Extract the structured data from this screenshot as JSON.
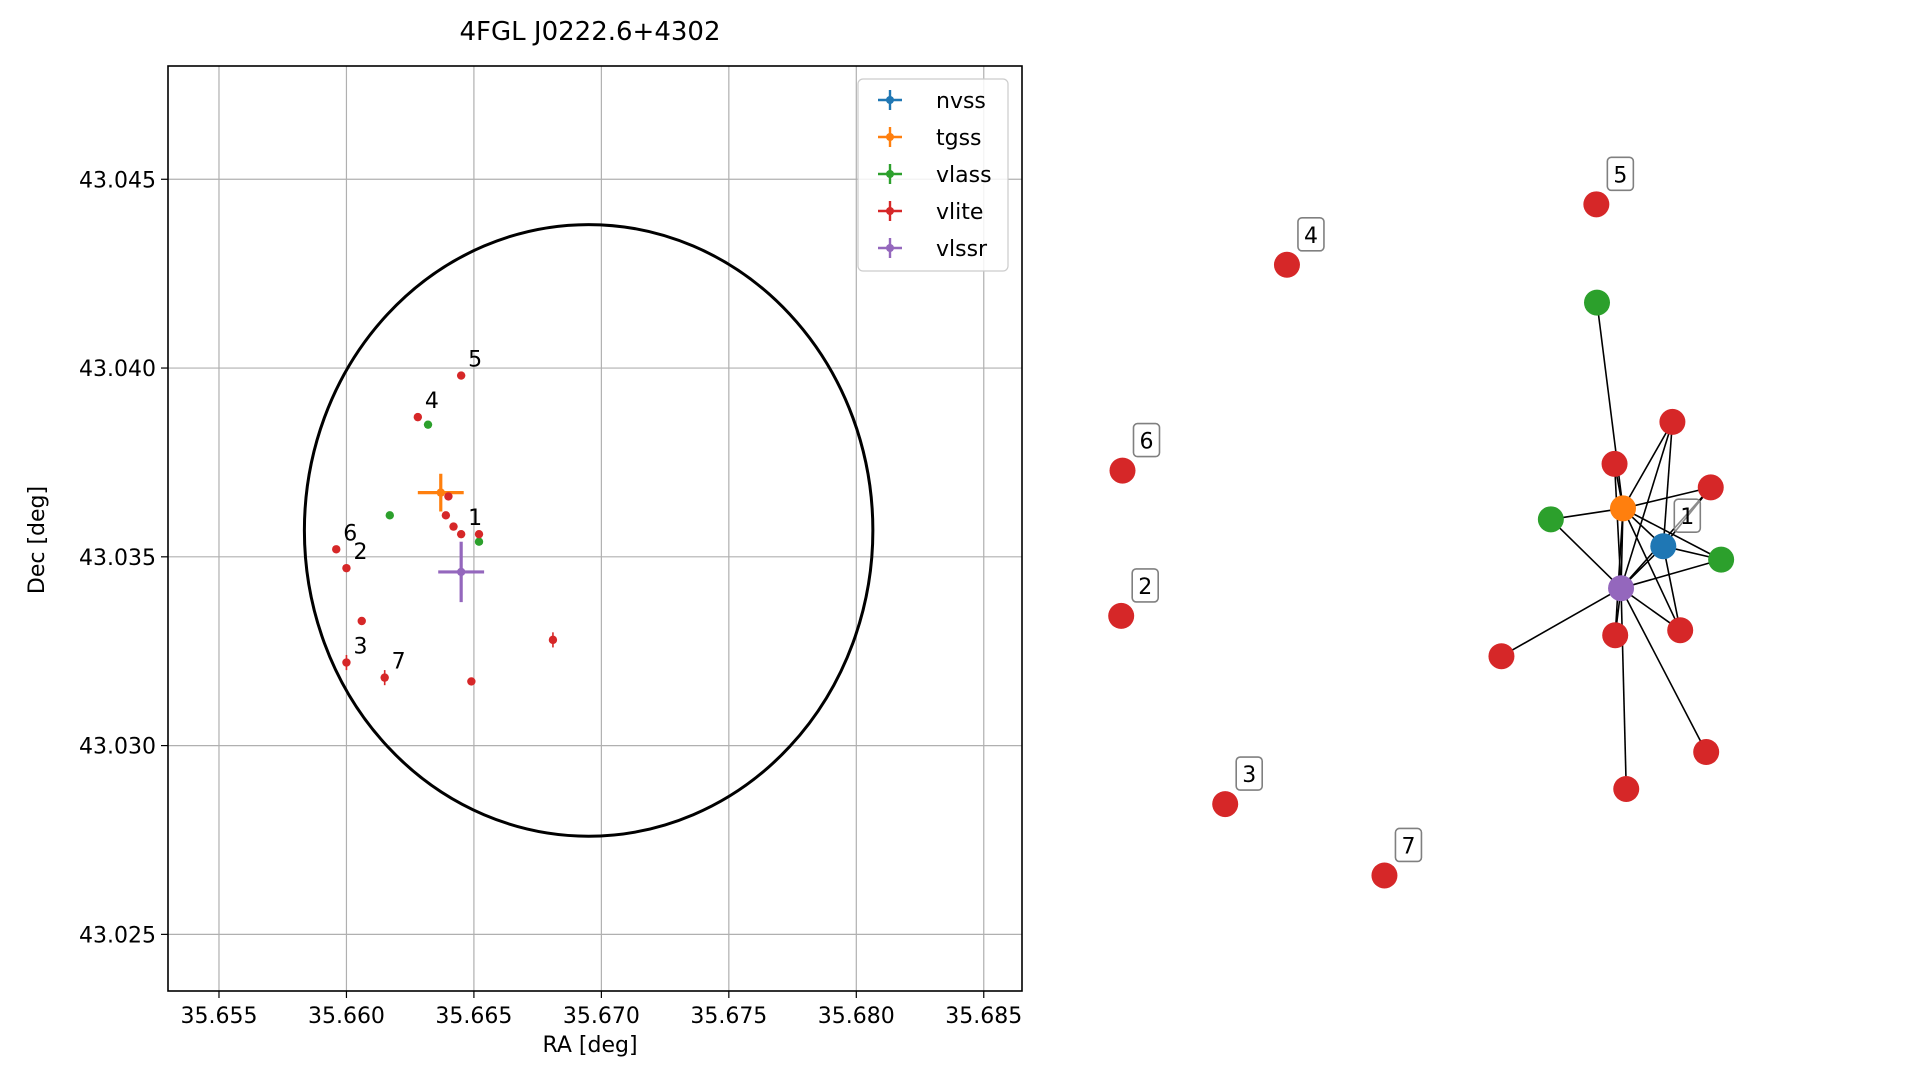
{
  "chart_data": [
    {
      "type": "scatter",
      "title": "4FGL J0222.6+4302",
      "xlabel": "RA [deg]",
      "ylabel": "Dec [deg]",
      "xlim": [
        35.653,
        35.6865
      ],
      "ylim": [
        43.0235,
        43.048
      ],
      "xticks": [
        35.655,
        35.66,
        35.665,
        35.67,
        35.675,
        35.68,
        35.685
      ],
      "xtick_labels": [
        "35.655",
        "35.660",
        "35.665",
        "35.670",
        "35.675",
        "35.680",
        "35.685"
      ],
      "yticks": [
        43.025,
        43.03,
        43.035,
        43.04,
        43.045
      ],
      "ytick_labels": [
        "43.025",
        "43.030",
        "43.035",
        "43.040",
        "43.045"
      ],
      "grid": true,
      "legend_position": "top-right",
      "ellipse": {
        "center_ra": 35.6695,
        "center_dec": 43.0357,
        "semi_ra": 0.01115,
        "semi_dec": 0.0081,
        "color": "#000000"
      },
      "series": [
        {
          "name": "nvss",
          "color": "#1f77b4",
          "points": []
        },
        {
          "name": "tgss",
          "color": "#ff7f0e",
          "points": [
            {
              "x": 35.6637,
              "y": 43.0367,
              "xerr": 0.0009,
              "yerr": 0.0005
            }
          ]
        },
        {
          "name": "vlass",
          "color": "#2ca02c",
          "points": [
            {
              "x": 35.6617,
              "y": 43.0361
            },
            {
              "x": 35.6632,
              "y": 43.0385
            },
            {
              "x": 35.6652,
              "y": 43.0354
            }
          ]
        },
        {
          "name": "vlite",
          "color": "#d62728",
          "points": [
            {
              "x": 35.6645,
              "y": 43.0356,
              "label": "1"
            },
            {
              "x": 35.66,
              "y": 43.0347,
              "label": "2"
            },
            {
              "x": 35.66,
              "y": 43.0322,
              "yerr": 0.0002,
              "label": "3"
            },
            {
              "x": 35.6628,
              "y": 43.0387,
              "label": "4"
            },
            {
              "x": 35.6645,
              "y": 43.0398,
              "label": "5"
            },
            {
              "x": 35.6596,
              "y": 43.0352,
              "label": "6"
            },
            {
              "x": 35.6615,
              "y": 43.0318,
              "yerr": 0.0002,
              "label": "7"
            },
            {
              "x": 35.664,
              "y": 43.0366
            },
            {
              "x": 35.6639,
              "y": 43.0361
            },
            {
              "x": 35.6642,
              "y": 43.0358
            },
            {
              "x": 35.6652,
              "y": 43.0356
            },
            {
              "x": 35.6606,
              "y": 43.0333
            },
            {
              "x": 35.6649,
              "y": 43.0317
            },
            {
              "x": 35.6681,
              "y": 43.0328,
              "yerr": 0.0002
            }
          ]
        },
        {
          "name": "vlssr",
          "color": "#9467bd",
          "points": [
            {
              "x": 35.6645,
              "y": 43.0346,
              "xerr": 0.0009,
              "yerr": 0.0008
            }
          ]
        }
      ]
    },
    {
      "type": "network",
      "title": "",
      "nodes": [
        {
          "id": "n1",
          "color": "#1f77b4",
          "x": 0.882,
          "y": 0.555,
          "label": "1"
        },
        {
          "id": "tgss",
          "color": "#ff7f0e",
          "x": 0.82,
          "y": 0.51
        },
        {
          "id": "vlssr",
          "color": "#9467bd",
          "x": 0.817,
          "y": 0.605
        },
        {
          "id": "g1",
          "color": "#2ca02c",
          "x": 0.78,
          "y": 0.265
        },
        {
          "id": "g2",
          "color": "#2ca02c",
          "x": 0.709,
          "y": 0.523
        },
        {
          "id": "g3",
          "color": "#2ca02c",
          "x": 0.971,
          "y": 0.571
        },
        {
          "id": "r1",
          "color": "#d62728",
          "x": 0.896,
          "y": 0.407
        },
        {
          "id": "r2",
          "color": "#d62728",
          "x": 0.807,
          "y": 0.457
        },
        {
          "id": "r3",
          "color": "#d62728",
          "x": 0.955,
          "y": 0.485
        },
        {
          "id": "r4",
          "color": "#d62728",
          "x": 0.633,
          "y": 0.686
        },
        {
          "id": "r5",
          "color": "#d62728",
          "x": 0.808,
          "y": 0.661
        },
        {
          "id": "r6",
          "color": "#d62728",
          "x": 0.908,
          "y": 0.655
        },
        {
          "id": "r7",
          "color": "#d62728",
          "x": 0.948,
          "y": 0.8
        },
        {
          "id": "r8",
          "color": "#d62728",
          "x": 0.825,
          "y": 0.844
        },
        {
          "id": "i2",
          "color": "#d62728",
          "x": 0.048,
          "y": 0.638,
          "label": "2"
        },
        {
          "id": "i3",
          "color": "#d62728",
          "x": 0.208,
          "y": 0.862,
          "label": "3"
        },
        {
          "id": "i4",
          "color": "#d62728",
          "x": 0.303,
          "y": 0.22,
          "label": "4"
        },
        {
          "id": "i5",
          "color": "#d62728",
          "x": 0.779,
          "y": 0.148,
          "label": "5"
        },
        {
          "id": "i6",
          "color": "#d62728",
          "x": 0.05,
          "y": 0.465,
          "label": "6"
        },
        {
          "id": "i7",
          "color": "#d62728",
          "x": 0.453,
          "y": 0.947,
          "label": "7"
        }
      ],
      "edges": [
        [
          "tgss",
          "g1"
        ],
        [
          "tgss",
          "g2"
        ],
        [
          "tgss",
          "r1"
        ],
        [
          "tgss",
          "r2"
        ],
        [
          "tgss",
          "r3"
        ],
        [
          "tgss",
          "n1"
        ],
        [
          "tgss",
          "vlssr"
        ],
        [
          "tgss",
          "r5"
        ],
        [
          "tgss",
          "r6"
        ],
        [
          "tgss",
          "g3"
        ],
        [
          "vlssr",
          "n1"
        ],
        [
          "vlssr",
          "g2"
        ],
        [
          "vlssr",
          "r1"
        ],
        [
          "vlssr",
          "r2"
        ],
        [
          "vlssr",
          "r3"
        ],
        [
          "vlssr",
          "g3"
        ],
        [
          "vlssr",
          "r4"
        ],
        [
          "vlssr",
          "r5"
        ],
        [
          "vlssr",
          "r6"
        ],
        [
          "vlssr",
          "r7"
        ],
        [
          "vlssr",
          "r8"
        ],
        [
          "n1",
          "r1"
        ],
        [
          "n1",
          "r3"
        ],
        [
          "n1",
          "g3"
        ],
        [
          "n1",
          "r6"
        ]
      ]
    }
  ]
}
